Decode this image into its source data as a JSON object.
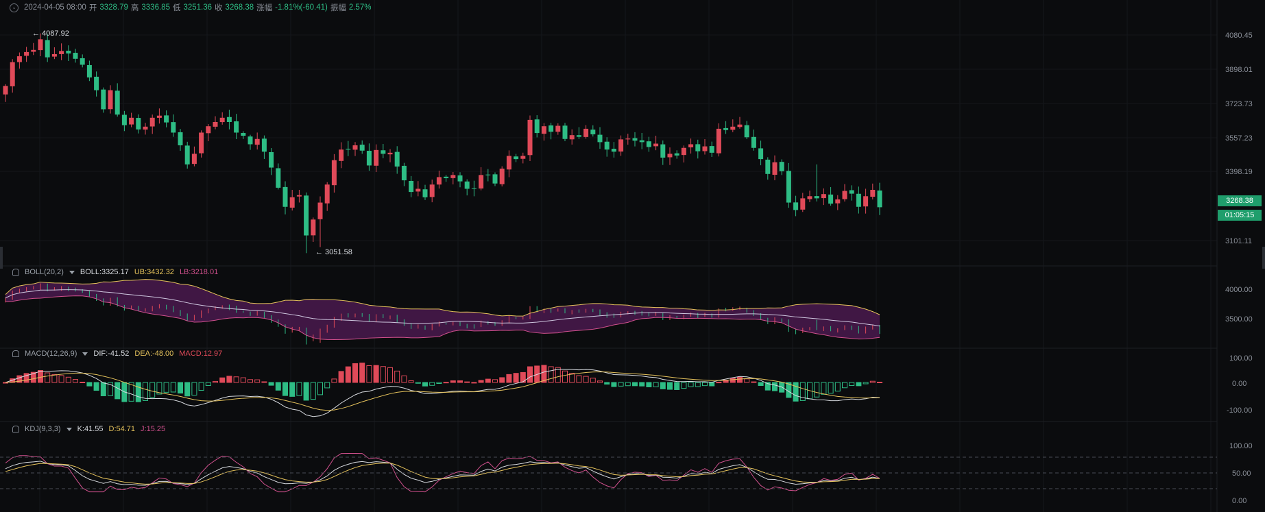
{
  "header": {
    "toggle_icon": "chevron-down-icon",
    "datetime": "2024-04-05 08:00",
    "open_label": "开",
    "open": "3328.79",
    "high_label": "高",
    "high": "3336.85",
    "low_label": "低",
    "low": "3251.36",
    "close_label": "收",
    "close": "3268.38",
    "change_label": "涨幅",
    "change": "-1.81%(-60.41)",
    "amp_label": "振幅",
    "amp": "2.57%"
  },
  "price_axis": [
    "4080.45",
    "3898.01",
    "3723.73",
    "3557.23",
    "3398.19",
    "3101.11"
  ],
  "price_tags": {
    "current": "3268.38",
    "countdown": "01:05:15"
  },
  "annotations": {
    "high": "← 4087.92",
    "low": "← 3051.58"
  },
  "boll": {
    "name": "BOLL(20,2)",
    "boll": "BOLL:3325.17",
    "ub": "UB:3432.32",
    "lb": "LB:3218.01",
    "axis": [
      "4000.00",
      "3500.00"
    ]
  },
  "macd": {
    "name": "MACD(12,26,9)",
    "dif": "DIF:-41.52",
    "dea": "DEA:-48.00",
    "macd": "MACD:12.97",
    "axis": [
      "100.00",
      "0.00",
      "-100.00"
    ]
  },
  "kdj": {
    "name": "KDJ(9,3,3)",
    "k": "K:41.55",
    "d": "D:54.71",
    "j": "J:15.25",
    "axis": [
      "100.00",
      "50.00",
      "0.00"
    ]
  },
  "colors": {
    "up": "#2ebd85",
    "down": "#e04a59",
    "yellow": "#e6c35c",
    "magenta": "#d0508d",
    "band": "#4a1a4e",
    "background": "#0b0c0e"
  },
  "chart_data": {
    "type": "candlestick",
    "price_axis_ticks": [
      4080.45,
      3898.01,
      3723.73,
      3557.23,
      3398.19,
      3101.11
    ],
    "closes": [
      3840,
      3952,
      3980,
      4000,
      4010,
      4060,
      3975,
      3990,
      4005,
      3993,
      3968,
      3940,
      3880,
      3820,
      3730,
      3820,
      3705,
      3655,
      3690,
      3635,
      3648,
      3690,
      3700,
      3668,
      3620,
      3560,
      3470,
      3520,
      3620,
      3650,
      3670,
      3690,
      3670,
      3620,
      3605,
      3565,
      3590,
      3530,
      3455,
      3360,
      3270,
      3315,
      3325,
      3135,
      3210,
      3290,
      3375,
      3490,
      3540,
      3540,
      3560,
      3535,
      3465,
      3538,
      3520,
      3525,
      3460,
      3395,
      3340,
      3355,
      3315,
      3375,
      3410,
      3405,
      3420,
      3390,
      3355,
      3355,
      3420,
      3420,
      3380,
      3450,
      3510,
      3495,
      3510,
      3680,
      3618,
      3650,
      3624,
      3652,
      3590,
      3608,
      3600,
      3638,
      3612,
      3575,
      3540,
      3530,
      3588,
      3592,
      3582,
      3575,
      3552,
      3568,
      3502,
      3520,
      3512,
      3548,
      3565,
      3532,
      3555,
      3525,
      3638,
      3632,
      3648,
      3658,
      3598,
      3548,
      3495,
      3425,
      3480,
      3438,
      3290,
      3255,
      3310,
      3320,
      3310,
      3330,
      3285,
      3305,
      3345,
      3332,
      3270,
      3320,
      3350,
      3268
    ]
  }
}
